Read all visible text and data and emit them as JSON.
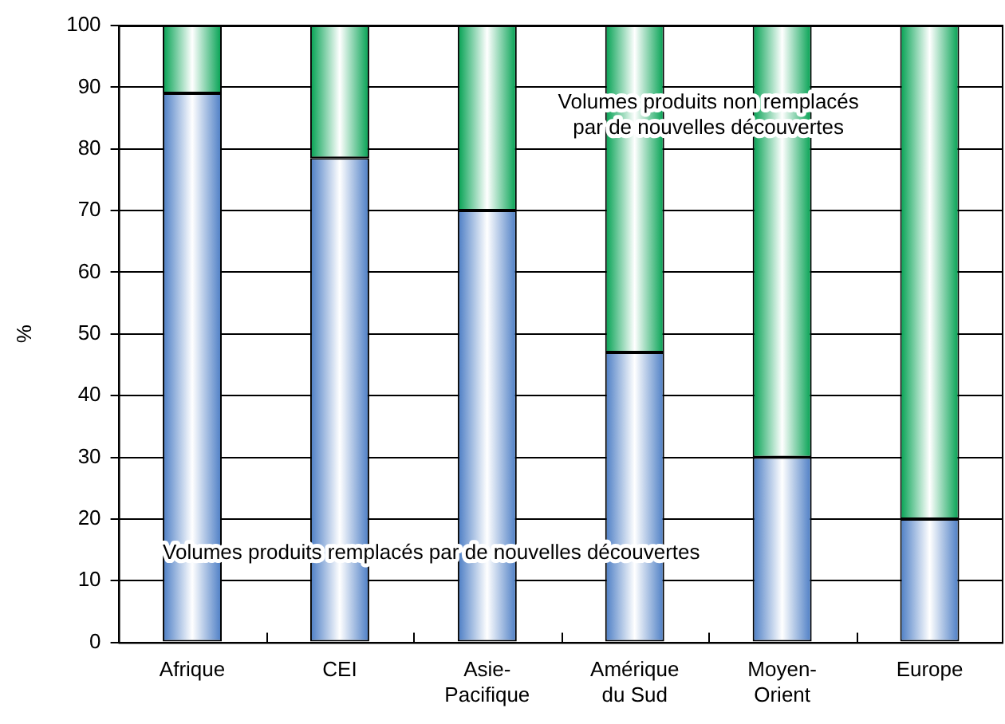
{
  "chart_data": {
    "type": "bar",
    "stacked": true,
    "ylabel": "%",
    "categories": [
      "Afrique",
      "CEI",
      "Asie-Pacifique",
      "Amérique du Sud",
      "Moyen-Orient",
      "Europe"
    ],
    "series": [
      {
        "name": "Volumes produits remplacés par de nouvelles découvertes",
        "color": "#4a7cc4",
        "values": [
          89,
          78.5,
          70,
          47,
          30,
          20
        ]
      },
      {
        "name": "Volumes produits non remplacés par de nouvelles découvertes",
        "color": "#00a050",
        "values": [
          11,
          21.5,
          30,
          53,
          70,
          80
        ]
      }
    ],
    "ylim": [
      0,
      100
    ],
    "yticks": [
      0,
      10,
      20,
      30,
      40,
      50,
      60,
      70,
      80,
      90,
      100
    ],
    "grid": "y",
    "legend": false
  }
}
